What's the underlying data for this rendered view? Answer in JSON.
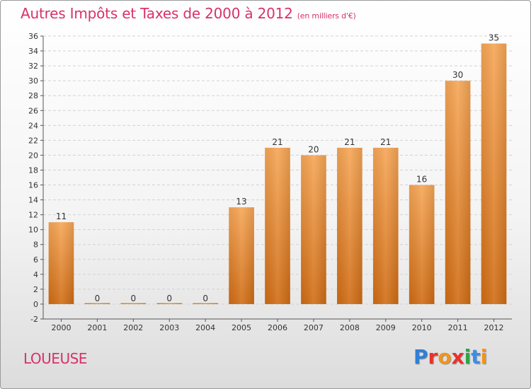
{
  "header": {
    "title": "Autres Impôts et Taxes de 2000 à 2012",
    "unit": "(en milliers d'€)"
  },
  "footer": {
    "commune": "LOUEUSE",
    "logo": "Proxiti"
  },
  "colors": {
    "accent": "#d8316c",
    "bar_top": "#f6a656",
    "bar_bottom": "#d06c14"
  },
  "chart_data": {
    "type": "bar",
    "title": "Autres Impôts et Taxes de 2000 à 2012",
    "unit": "(en milliers d'€)",
    "xlabel": "",
    "ylabel": "",
    "categories": [
      "2000",
      "2001",
      "2002",
      "2003",
      "2004",
      "2005",
      "2006",
      "2007",
      "2008",
      "2009",
      "2010",
      "2011",
      "2012"
    ],
    "values": [
      11,
      0,
      0,
      0,
      0,
      13,
      21,
      20,
      21,
      21,
      16,
      30,
      35
    ],
    "value_labels": [
      "11",
      "0",
      "0",
      "0",
      "0",
      "13",
      "21",
      "20",
      "21",
      "21",
      "16",
      "30",
      "35"
    ],
    "ylim": [
      -2,
      36
    ],
    "yticks": [
      -2,
      0,
      2,
      4,
      6,
      8,
      10,
      12,
      14,
      16,
      18,
      20,
      22,
      24,
      26,
      28,
      30,
      32,
      34,
      36
    ],
    "grid": true
  }
}
